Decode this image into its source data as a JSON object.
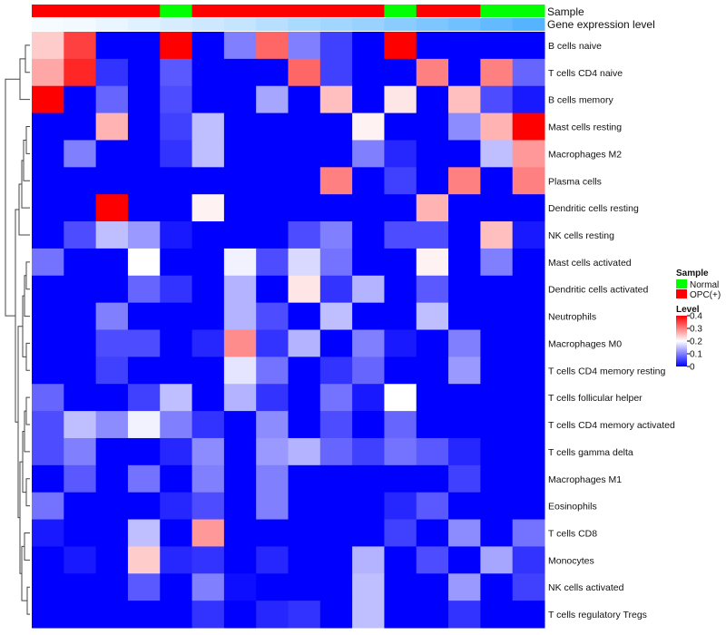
{
  "chart_data": {
    "type": "heatmap",
    "annotation_labels": {
      "sample": "Sample",
      "expression": "Gene expression level"
    },
    "columns": 16,
    "sample_groups": [
      "OPC(+)",
      "OPC(+)",
      "OPC(+)",
      "OPC(+)",
      "Normal",
      "OPC(+)",
      "OPC(+)",
      "OPC(+)",
      "OPC(+)",
      "OPC(+)",
      "OPC(+)",
      "Normal",
      "OPC(+)",
      "OPC(+)",
      "Normal",
      "Normal"
    ],
    "expression_strip": [
      0.02,
      0.03,
      0.05,
      0.07,
      0.09,
      0.11,
      0.13,
      0.16,
      0.19,
      0.21,
      0.23,
      0.26,
      0.29,
      0.32,
      0.35,
      0.38
    ],
    "rows": [
      "B cells naive",
      "T cells CD4 naive",
      "B cells memory",
      "Mast cells resting",
      "Macrophages M2",
      "Plasma cells",
      "Dendritic cells resting",
      "NK cells resting",
      "Mast cells activated",
      "Dendritic cells activated",
      "Neutrophils",
      "Macrophages M0",
      "T cells CD4 memory resting",
      "T cells follicular helper",
      "T cells CD4 memory activated",
      "T cells gamma delta",
      "Macrophages M1",
      "Eosinophils",
      "T cells CD8",
      "Monocytes",
      "NK cells activated",
      "T cells regulatory  Tregs"
    ],
    "matrix": [
      [
        0.24,
        0.35,
        0.0,
        0.0,
        0.4,
        0.0,
        0.1,
        0.32,
        0.1,
        0.05,
        0.0,
        0.4,
        0.0,
        0.0,
        0.0,
        0.0
      ],
      [
        0.27,
        0.37,
        0.04,
        0.0,
        0.07,
        0.0,
        0.0,
        0.0,
        0.32,
        0.05,
        0.0,
        0.0,
        0.3,
        0.0,
        0.3,
        0.08
      ],
      [
        0.4,
        0.0,
        0.08,
        0.0,
        0.06,
        0.0,
        0.0,
        0.13,
        0.0,
        0.25,
        0.0,
        0.22,
        0.0,
        0.25,
        0.06,
        0.02
      ],
      [
        0.0,
        0.0,
        0.26,
        0.0,
        0.05,
        0.15,
        0.0,
        0.0,
        0.0,
        0.0,
        0.21,
        0.0,
        0.0,
        0.11,
        0.26,
        0.4
      ],
      [
        0.0,
        0.1,
        0.0,
        0.0,
        0.04,
        0.15,
        0.0,
        0.0,
        0.0,
        0.0,
        0.1,
        0.03,
        0.0,
        0.0,
        0.15,
        0.28
      ],
      [
        0.0,
        0.0,
        0.0,
        0.0,
        0.0,
        0.0,
        0.0,
        0.0,
        0.0,
        0.3,
        0.0,
        0.05,
        0.0,
        0.3,
        0.0,
        0.3
      ],
      [
        0.0,
        0.0,
        0.4,
        0.0,
        0.0,
        0.21,
        0.0,
        0.0,
        0.0,
        0.0,
        0.0,
        0.0,
        0.26,
        0.0,
        0.0,
        0.0
      ],
      [
        0.0,
        0.06,
        0.15,
        0.12,
        0.02,
        0.0,
        0.0,
        0.0,
        0.06,
        0.1,
        0.0,
        0.06,
        0.06,
        0.0,
        0.25,
        0.02
      ],
      [
        0.09,
        0.0,
        0.0,
        0.2,
        0.0,
        0.0,
        0.19,
        0.06,
        0.17,
        0.09,
        0.0,
        0.0,
        0.21,
        0.0,
        0.1,
        0.0
      ],
      [
        0.0,
        0.0,
        0.0,
        0.08,
        0.04,
        0.0,
        0.14,
        0.0,
        0.22,
        0.04,
        0.14,
        0.0,
        0.07,
        0.0,
        0.0,
        0.0
      ],
      [
        0.0,
        0.0,
        0.1,
        0.0,
        0.0,
        0.0,
        0.14,
        0.06,
        0.0,
        0.15,
        0.0,
        0.0,
        0.15,
        0.0,
        0.0,
        0.0
      ],
      [
        0.0,
        0.0,
        0.06,
        0.06,
        0.0,
        0.03,
        0.29,
        0.04,
        0.14,
        0.0,
        0.1,
        0.02,
        0.0,
        0.1,
        0.0,
        0.0
      ],
      [
        0.0,
        0.0,
        0.05,
        0.0,
        0.0,
        0.0,
        0.18,
        0.09,
        0.0,
        0.04,
        0.08,
        0.0,
        0.0,
        0.12,
        0.0,
        0.0
      ],
      [
        0.08,
        0.0,
        0.0,
        0.05,
        0.15,
        0.0,
        0.14,
        0.04,
        0.0,
        0.09,
        0.02,
        0.2,
        0.0,
        0.0,
        0.0,
        0.0
      ],
      [
        0.06,
        0.15,
        0.11,
        0.19,
        0.1,
        0.04,
        0.0,
        0.11,
        0.0,
        0.06,
        0.0,
        0.08,
        0.0,
        0.0,
        0.0,
        0.0
      ],
      [
        0.06,
        0.1,
        0.0,
        0.0,
        0.03,
        0.11,
        0.0,
        0.12,
        0.14,
        0.08,
        0.05,
        0.09,
        0.07,
        0.03,
        0.0,
        0.0
      ],
      [
        0.0,
        0.07,
        0.0,
        0.09,
        0.0,
        0.1,
        0.0,
        0.1,
        0.0,
        0.0,
        0.0,
        0.0,
        0.0,
        0.05,
        0.0,
        0.0
      ],
      [
        0.09,
        0.0,
        0.0,
        0.0,
        0.03,
        0.06,
        0.0,
        0.1,
        0.0,
        0.0,
        0.0,
        0.03,
        0.07,
        0.0,
        0.0,
        0.0
      ],
      [
        0.02,
        0.0,
        0.0,
        0.15,
        0.0,
        0.28,
        0.0,
        0.0,
        0.0,
        0.0,
        0.0,
        0.05,
        0.0,
        0.11,
        0.0,
        0.09
      ],
      [
        0.0,
        0.02,
        0.0,
        0.24,
        0.03,
        0.04,
        0.0,
        0.03,
        0.0,
        0.0,
        0.14,
        0.0,
        0.06,
        0.0,
        0.13,
        0.04
      ],
      [
        0.0,
        0.0,
        0.0,
        0.07,
        0.0,
        0.1,
        0.01,
        0.0,
        0.0,
        0.0,
        0.15,
        0.0,
        0.0,
        0.12,
        0.0,
        0.05
      ],
      [
        0.0,
        0.0,
        0.0,
        0.0,
        0.0,
        0.04,
        0.0,
        0.03,
        0.04,
        0.0,
        0.15,
        0.0,
        0.0,
        0.04,
        0.0,
        0.0
      ]
    ],
    "legend": {
      "sample_title": "Sample",
      "sample_entries": [
        {
          "label": "Normal",
          "color": "#00ff00"
        },
        {
          "label": "OPC(+)",
          "color": "#ff0000"
        }
      ],
      "level_title": "Level",
      "level_ticks": [
        "0.4",
        "0.3",
        "0.2",
        "0.1",
        "0"
      ],
      "level_range": [
        0,
        0.4
      ]
    },
    "colors": {
      "low": "#0000ff",
      "mid": "#ffffff",
      "high": "#ff0000",
      "mid_value": 0.2
    },
    "strip_colors": {
      "low": "#ffffff",
      "high": "#56b4ff"
    }
  }
}
